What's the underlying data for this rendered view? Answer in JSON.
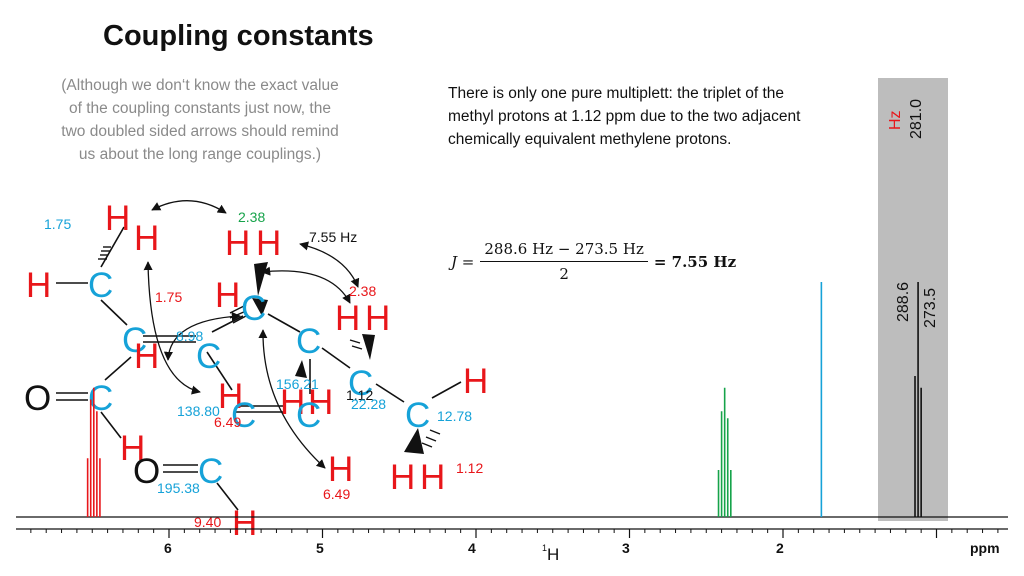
{
  "slide": {
    "title": "Coupling constants",
    "note": "(Although we don‘t know the exact value of the coupling constants just now, the two doubled sided arrows should remind us about the long range couplings.)",
    "info": "There is only one pure multiplett: the triplet of the methyl protons at 1.12 ppm due to the two adjacent chemically equivalent methylene protons."
  },
  "equation": {
    "lhs": "J =",
    "numerator": "288.6 Hz − 273.5 Hz",
    "denominator": "2",
    "result": "= 7.55 Hz"
  },
  "colors": {
    "red": "#e8161a",
    "blue": "#16a2d8",
    "green": "#16a34a",
    "gray": "#bdbdbd",
    "black": "#111111"
  },
  "molecule": {
    "atoms": {
      "H": "H",
      "C": "C",
      "O": "O"
    },
    "labels": {
      "l175a": "1.75",
      "l238a": "2.38",
      "l755": "7.55 Hz",
      "l175b": "1.75",
      "l238b": "2.38",
      "l898": "8.98",
      "l15621": "156.21",
      "l112a": "1.12",
      "l2228": "22.28",
      "l13880": "138.80",
      "l649a": "6.49",
      "l1278": "12.78",
      "l649b": "6.49",
      "l112b": "1.12",
      "l19538": "195.38",
      "l940": "9.40"
    }
  },
  "spectrum": {
    "x_axis": {
      "ticks": [
        "6",
        "5",
        "4",
        "3",
        "2"
      ],
      "unit_label": "ppm",
      "nucleus_sup": "1",
      "nucleus": "H",
      "range_ppm": [
        6.95,
        0.5
      ]
    },
    "inset": {
      "unit": "Hz",
      "value_top": "281.0",
      "peak_label_1": "288.6",
      "peak_label_2": "273.5"
    }
  },
  "chart_data": {
    "type": "line",
    "xlabel": "ppm",
    "xlim": [
      6.95,
      0.5
    ],
    "series": [
      {
        "name": "",
        "ppm": [
          6.53,
          6.51,
          6.49,
          6.47,
          6.45
        ],
        "rel_height": [
          0.25,
          0.5,
          0.55,
          0.45,
          0.25
        ],
        "color": "#e8161a"
      },
      {
        "name": "",
        "ppm": [
          2.42,
          2.4,
          2.38,
          2.36,
          2.34
        ],
        "rel_height": [
          0.2,
          0.45,
          0.55,
          0.42,
          0.2
        ],
        "color": "#16a34a"
      },
      {
        "name": "",
        "ppm": [
          1.75
        ],
        "rel_height": [
          1.0
        ],
        "color": "#16a2d8"
      },
      {
        "name": "",
        "ppm": [
          1.14,
          1.12,
          1.1
        ],
        "rel_height": [
          0.6,
          1.0,
          0.55
        ],
        "color": "#111111"
      }
    ]
  }
}
